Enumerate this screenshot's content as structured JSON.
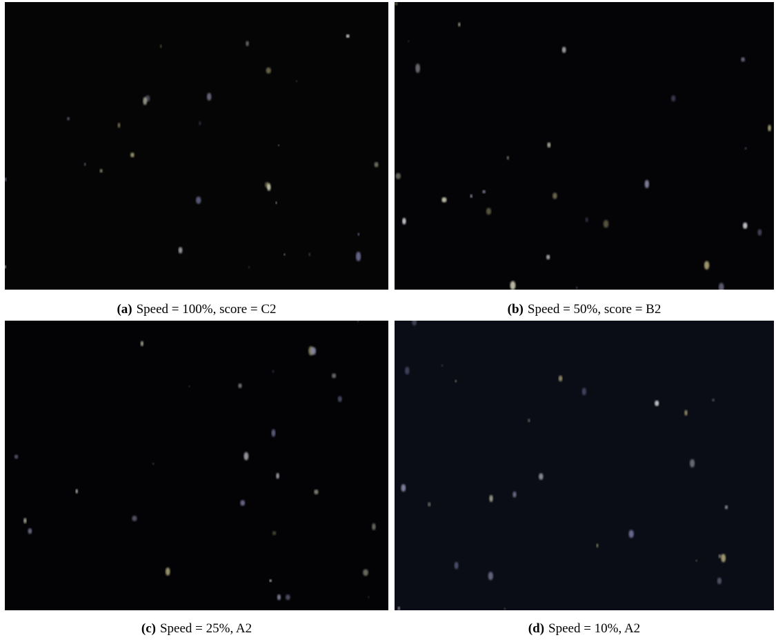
{
  "figure": {
    "panels": [
      {
        "label": "(a)",
        "caption": "Speed = 100%, score = C2"
      },
      {
        "label": "(b)",
        "caption": "Speed = 50%, score = B2"
      },
      {
        "label": "(c)",
        "caption": "Speed = 25%, A2"
      },
      {
        "label": "(d)",
        "caption": "Speed = 10%, A2"
      }
    ]
  }
}
